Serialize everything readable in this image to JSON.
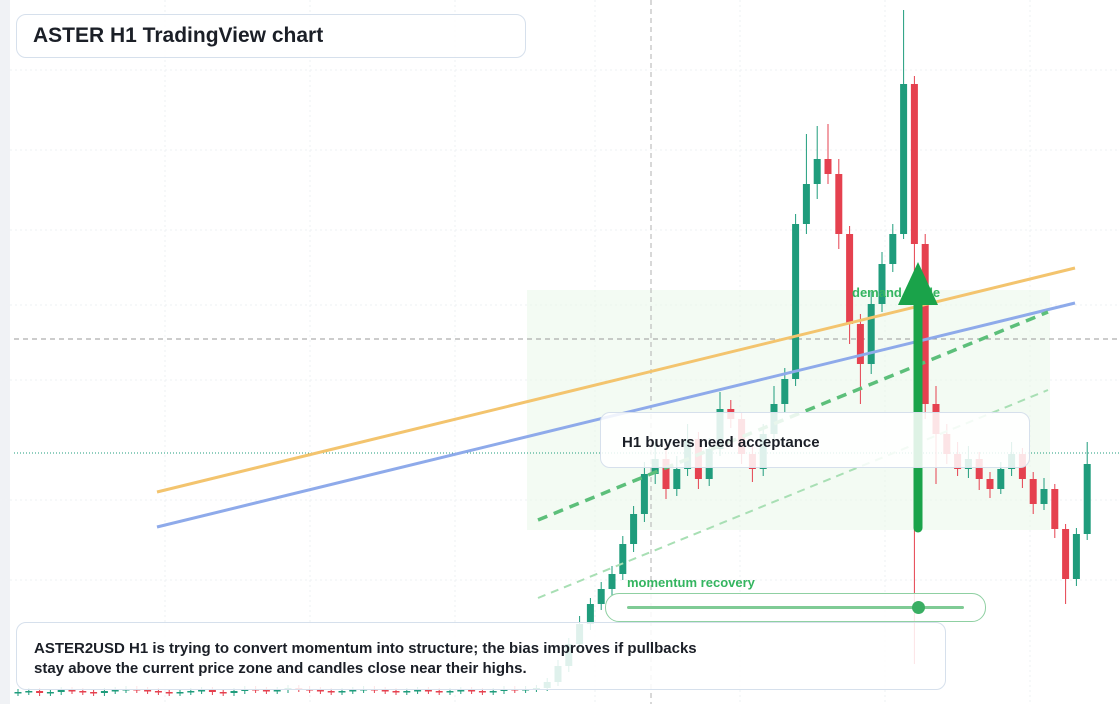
{
  "chart_data": {
    "type": "candlestick",
    "title": "ASTER H1 TradingView chart",
    "open": [
      11,
      12,
      13,
      11,
      12,
      14,
      13,
      12,
      11,
      13,
      14,
      15,
      14,
      13,
      12,
      11,
      12,
      13,
      14,
      12,
      11,
      13,
      15,
      14,
      13,
      14,
      16,
      15,
      14,
      13,
      12,
      13,
      14,
      15,
      14,
      13,
      12,
      13,
      14,
      13,
      12,
      13,
      14,
      13,
      12,
      13,
      15,
      14,
      15,
      16,
      22,
      38,
      60,
      80,
      100,
      115,
      130,
      160,
      190,
      230,
      245,
      215,
      235,
      265,
      225,
      255,
      295,
      285,
      250,
      235,
      270,
      300,
      325,
      480,
      520,
      545,
      530,
      470,
      380,
      340,
      400,
      440,
      470,
      620,
      460,
      300,
      270,
      250,
      235,
      245,
      225,
      215,
      235,
      250,
      225,
      200,
      215,
      175,
      125,
      170
    ],
    "high": [
      15,
      16,
      16,
      15,
      17,
      17,
      16,
      15,
      16,
      17,
      18,
      18,
      17,
      16,
      15,
      15,
      16,
      17,
      17,
      15,
      16,
      18,
      18,
      17,
      17,
      19,
      19,
      18,
      17,
      16,
      16,
      17,
      18,
      18,
      17,
      16,
      16,
      17,
      17,
      16,
      16,
      17,
      17,
      16,
      16,
      18,
      18,
      18,
      19,
      26,
      44,
      66,
      88,
      106,
      122,
      138,
      168,
      198,
      242,
      262,
      258,
      248,
      280,
      272,
      266,
      312,
      304,
      292,
      258,
      280,
      318,
      336,
      490,
      570,
      578,
      580,
      545,
      478,
      390,
      412,
      452,
      480,
      694,
      628,
      470,
      318,
      280,
      262,
      258,
      252,
      232,
      242,
      262,
      256,
      232,
      226,
      220,
      180,
      176,
      262
    ],
    "low": [
      8,
      9,
      8,
      8,
      9,
      10,
      9,
      8,
      8,
      10,
      11,
      11,
      10,
      9,
      8,
      8,
      9,
      10,
      9,
      8,
      8,
      10,
      11,
      10,
      10,
      11,
      12,
      11,
      10,
      9,
      9,
      10,
      11,
      11,
      10,
      9,
      9,
      10,
      10,
      9,
      9,
      10,
      10,
      9,
      9,
      10,
      11,
      11,
      12,
      13,
      18,
      32,
      55,
      74,
      94,
      108,
      124,
      152,
      182,
      220,
      205,
      208,
      228,
      215,
      218,
      248,
      276,
      240,
      222,
      228,
      262,
      292,
      318,
      470,
      505,
      520,
      455,
      360,
      300,
      330,
      392,
      432,
      465,
      40,
      285,
      220,
      240,
      228,
      226,
      214,
      206,
      210,
      228,
      216,
      190,
      194,
      166,
      100,
      118,
      164
    ],
    "close": [
      12,
      13,
      11,
      12,
      14,
      13,
      12,
      11,
      13,
      14,
      15,
      14,
      13,
      12,
      11,
      12,
      13,
      14,
      12,
      11,
      13,
      15,
      14,
      13,
      14,
      16,
      15,
      14,
      13,
      12,
      13,
      14,
      15,
      14,
      13,
      12,
      13,
      14,
      13,
      12,
      13,
      14,
      13,
      12,
      13,
      15,
      14,
      15,
      16,
      22,
      38,
      60,
      80,
      100,
      115,
      130,
      160,
      190,
      230,
      245,
      215,
      235,
      265,
      225,
      255,
      295,
      285,
      250,
      235,
      270,
      300,
      325,
      480,
      520,
      545,
      530,
      470,
      380,
      340,
      400,
      440,
      470,
      620,
      460,
      300,
      270,
      250,
      235,
      245,
      225,
      215,
      235,
      250,
      225,
      200,
      215,
      175,
      125,
      170,
      240
    ],
    "ylim": [
      0,
      704
    ],
    "up_color": "#1f9c7c",
    "down_color": "#e5414f"
  },
  "annotations": {
    "zone_label": "demand guide",
    "callout": "H1 buyers need acceptance",
    "momentum_label": "momentum recovery",
    "summary": "ASTER2USD H1 is trying to convert momentum into structure; the bias improves if pullbacks stay above the current price zone and candles close near their highs."
  }
}
